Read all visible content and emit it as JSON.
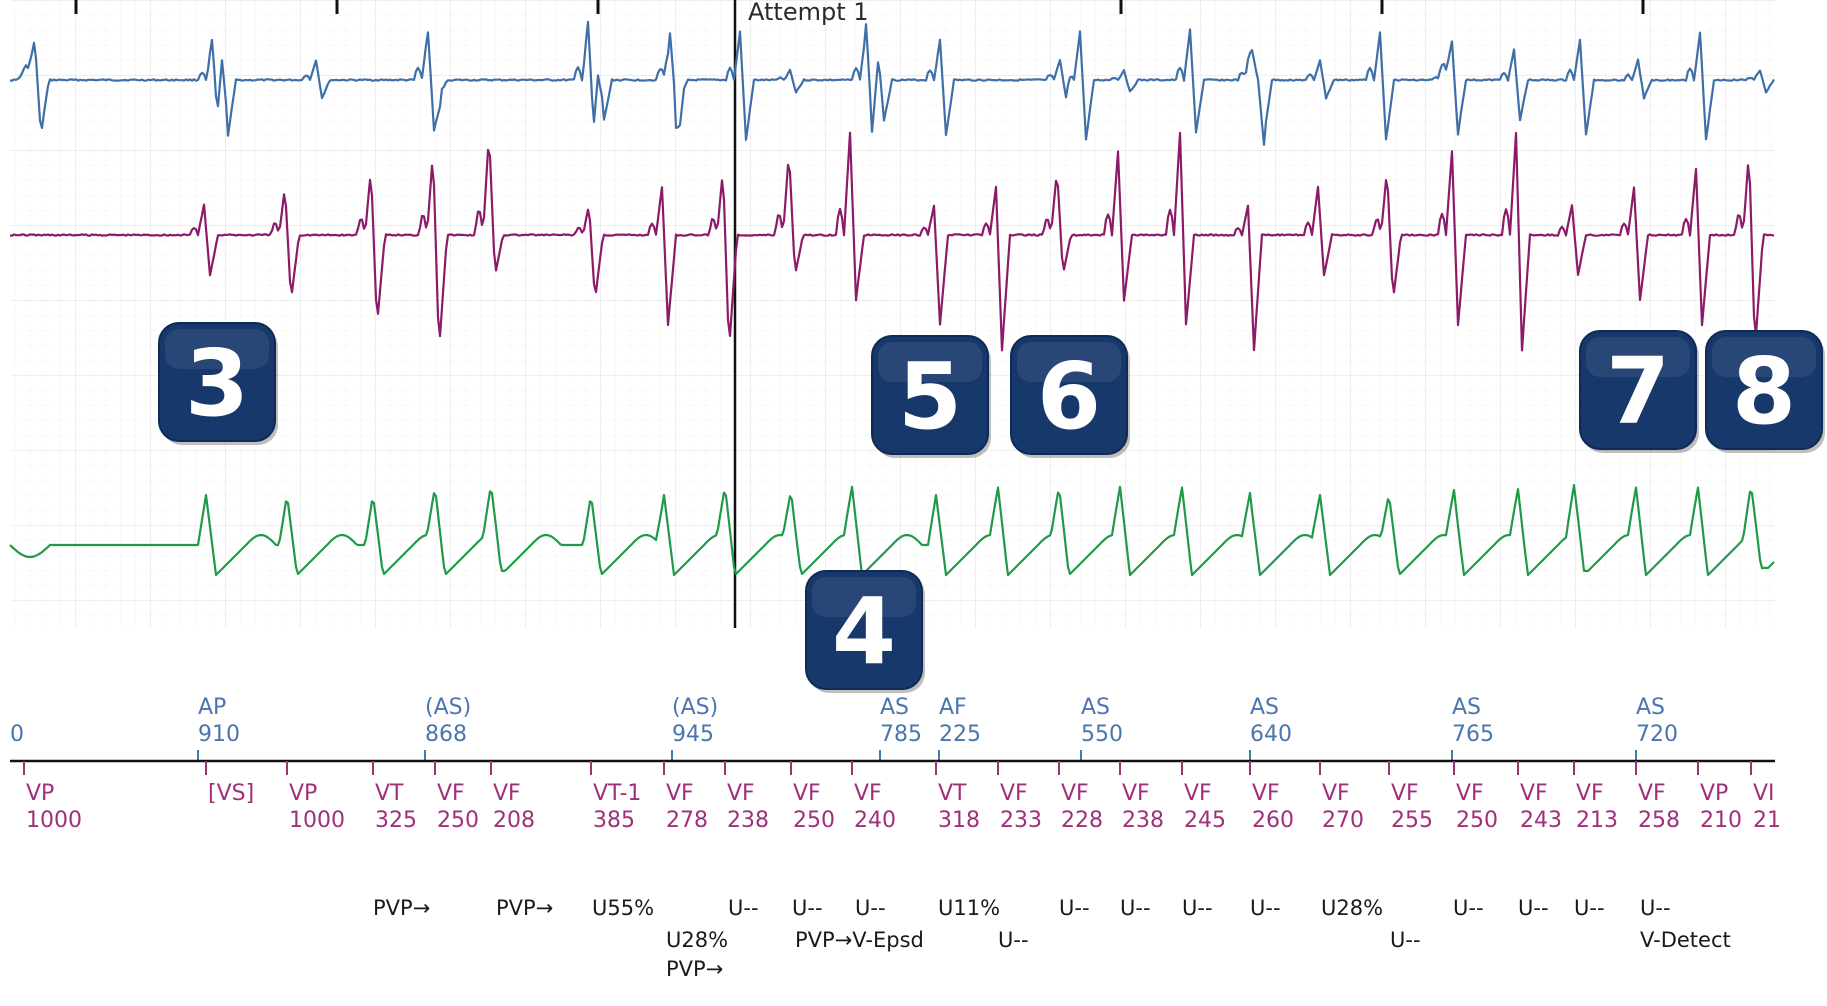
{
  "header": {
    "episode_label": "Attempt 1"
  },
  "colors": {
    "atrial_egm": "#3f6fa8",
    "ventricular_egm": "#8c1a68",
    "far_field_egm": "#1f9a48",
    "atrial_marker": "#4a76ad",
    "ventricular_marker": "#a0307a",
    "badge": "#17386b"
  },
  "badges": [
    {
      "label": "3"
    },
    {
      "label": "5"
    },
    {
      "label": "6"
    },
    {
      "label": "7"
    },
    {
      "label": "8"
    },
    {
      "label": "4"
    }
  ],
  "atrial_markers": [
    {
      "type": "",
      "interval": "0"
    },
    {
      "type": "AP",
      "interval": "910"
    },
    {
      "type": "(AS)",
      "interval": "868"
    },
    {
      "type": "(AS)",
      "interval": "945"
    },
    {
      "type": "AS",
      "interval": "785"
    },
    {
      "type": "AF",
      "interval": "225"
    },
    {
      "type": "AS",
      "interval": "550"
    },
    {
      "type": "AS",
      "interval": "640"
    },
    {
      "type": "AS",
      "interval": "765"
    },
    {
      "type": "AS",
      "interval": "720"
    }
  ],
  "ventricular_markers": [
    {
      "type": "VP",
      "interval": "1000"
    },
    {
      "type": "[VS]",
      "interval": ""
    },
    {
      "type": "VP",
      "interval": "1000"
    },
    {
      "type": "VT",
      "interval": "325"
    },
    {
      "type": "VF",
      "interval": "250"
    },
    {
      "type": "VF",
      "interval": "208"
    },
    {
      "type": "VT-1",
      "interval": "385"
    },
    {
      "type": "VF",
      "interval": "278"
    },
    {
      "type": "VF",
      "interval": "238"
    },
    {
      "type": "VF",
      "interval": "250"
    },
    {
      "type": "VF",
      "interval": "240"
    },
    {
      "type": "VT",
      "interval": "318"
    },
    {
      "type": "VF",
      "interval": "233"
    },
    {
      "type": "VF",
      "interval": "228"
    },
    {
      "type": "VF",
      "interval": "238"
    },
    {
      "type": "VF",
      "interval": "245"
    },
    {
      "type": "VF",
      "interval": "260"
    },
    {
      "type": "VF",
      "interval": "270"
    },
    {
      "type": "VF",
      "interval": "255"
    },
    {
      "type": "VF",
      "interval": "250"
    },
    {
      "type": "VF",
      "interval": "243"
    },
    {
      "type": "VF",
      "interval": "213"
    },
    {
      "type": "VF",
      "interval": "258"
    },
    {
      "type": "VP",
      "interval": "210"
    },
    {
      "type": "VI",
      "interval": "21"
    }
  ],
  "annotations": [
    {
      "text": "PVP→"
    },
    {
      "text": "PVP→"
    },
    {
      "text": "U55%"
    },
    {
      "text": "U28%"
    },
    {
      "text": "PVP→"
    },
    {
      "text": "U--"
    },
    {
      "text": "U--"
    },
    {
      "text": "PVP→V-Epsd"
    },
    {
      "text": "U--"
    },
    {
      "text": "U11%"
    },
    {
      "text": "U--"
    },
    {
      "text": "U--"
    },
    {
      "text": "U--"
    },
    {
      "text": "U--"
    },
    {
      "text": "U--"
    },
    {
      "text": "U28%"
    },
    {
      "text": "U--"
    },
    {
      "text": "U--"
    },
    {
      "text": "U--"
    },
    {
      "text": "U--"
    },
    {
      "text": "U--"
    },
    {
      "text": "V-Detect"
    }
  ]
}
